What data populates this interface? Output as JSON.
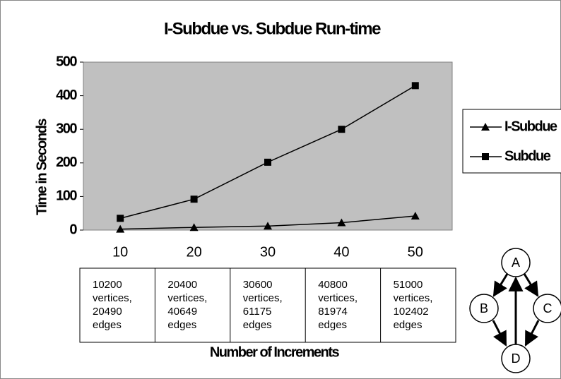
{
  "chart_data": {
    "type": "line",
    "title": "I-Subdue vs. Subdue Run-time",
    "x_label": "Number of Increments",
    "y_label": "Time in Seconds",
    "categories": [
      "10",
      "20",
      "30",
      "40",
      "50"
    ],
    "series": [
      {
        "name": "I-Subdue",
        "color": "#000000",
        "marker": "triangle",
        "values": [
          3,
          8,
          12,
          22,
          42
        ]
      },
      {
        "name": "Subdue",
        "color": "#000000",
        "marker": "square",
        "values": [
          35,
          92,
          202,
          300,
          430
        ]
      }
    ],
    "ylim": [
      0,
      500
    ],
    "yticks": [
      0,
      100,
      200,
      300,
      400,
      500
    ],
    "grid": false,
    "legend": "right"
  },
  "table": {
    "cells": [
      [
        "10200",
        "vertices,",
        "20490",
        "edges"
      ],
      [
        "20400",
        "vertices,",
        "40649",
        "edges"
      ],
      [
        "30600",
        "vertices,",
        "61175",
        "edges"
      ],
      [
        "40800",
        "vertices,",
        "81974",
        "edges"
      ],
      [
        "51000",
        "vertices,",
        "102402",
        "edges"
      ]
    ]
  },
  "diagram": {
    "nodes": [
      {
        "label": "A"
      },
      {
        "label": "B"
      },
      {
        "label": "C"
      },
      {
        "label": "D"
      }
    ]
  }
}
